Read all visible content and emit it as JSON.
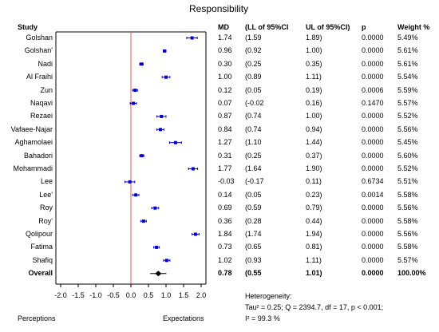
{
  "chart_data": {
    "type": "forest",
    "title": "Responsibility",
    "columns": [
      "Study",
      "MD",
      "(LL of 95%CI",
      "UL of 95%CI)",
      "p",
      "Weight %"
    ],
    "rows": [
      {
        "study": "Golshan",
        "md": "1.74",
        "ll": "(1.59",
        "ul": "1.89)",
        "p": "0.0000",
        "weight": "5.49%",
        "md_v": 1.74,
        "ll_v": 1.59,
        "ul_v": 1.89
      },
      {
        "study": "Golshan'",
        "md": "0.96",
        "ll": "(0.92",
        "ul": "1.00)",
        "p": "0.0000",
        "weight": "5.61%",
        "md_v": 0.96,
        "ll_v": 0.92,
        "ul_v": 1.0
      },
      {
        "study": "Nadi",
        "md": "0.30",
        "ll": "(0.25",
        "ul": "0.35)",
        "p": "0.0000",
        "weight": "5.61%",
        "md_v": 0.3,
        "ll_v": 0.25,
        "ul_v": 0.35
      },
      {
        "study": "Al Fraihi",
        "md": "1.00",
        "ll": "(0.89",
        "ul": "1.11)",
        "p": "0.0000",
        "weight": "5.54%",
        "md_v": 1.0,
        "ll_v": 0.89,
        "ul_v": 1.11
      },
      {
        "study": "Zun",
        "md": "0.12",
        "ll": "(0.05",
        "ul": "0.19)",
        "p": "0.0006",
        "weight": "5.59%",
        "md_v": 0.12,
        "ll_v": 0.05,
        "ul_v": 0.19
      },
      {
        "study": "Naqavi",
        "md": "0.07",
        "ll": "(-0.02",
        "ul": "0.16)",
        "p": "0.1470",
        "weight": "5.57%",
        "md_v": 0.07,
        "ll_v": -0.02,
        "ul_v": 0.16
      },
      {
        "study": "Rezaei",
        "md": "0.87",
        "ll": "(0.74",
        "ul": "1.00)",
        "p": "0.0000",
        "weight": "5.52%",
        "md_v": 0.87,
        "ll_v": 0.74,
        "ul_v": 1.0
      },
      {
        "study": "Vafaee-Najar",
        "md": "0.84",
        "ll": "(0.74",
        "ul": "0.94)",
        "p": "0.0000",
        "weight": "5.56%",
        "md_v": 0.84,
        "ll_v": 0.74,
        "ul_v": 0.94
      },
      {
        "study": "Aghamolaei",
        "md": "1.27",
        "ll": "(1.10",
        "ul": "1.44)",
        "p": "0.0000",
        "weight": "5.45%",
        "md_v": 1.27,
        "ll_v": 1.1,
        "ul_v": 1.44
      },
      {
        "study": "Bahadori",
        "md": "0.31",
        "ll": "(0.25",
        "ul": "0.37)",
        "p": "0.0000",
        "weight": "5.60%",
        "md_v": 0.31,
        "ll_v": 0.25,
        "ul_v": 0.37
      },
      {
        "study": "Mohammadi",
        "md": "1.77",
        "ll": "(1.64",
        "ul": "1.90)",
        "p": "0.0000",
        "weight": "5.52%",
        "md_v": 1.77,
        "ll_v": 1.64,
        "ul_v": 1.9
      },
      {
        "study": "Lee",
        "md": "-0.03",
        "ll": "(-0.17",
        "ul": "0.11)",
        "p": "0.6734",
        "weight": "5.51%",
        "md_v": -0.03,
        "ll_v": -0.17,
        "ul_v": 0.11
      },
      {
        "study": "Lee'",
        "md": "0.14",
        "ll": "(0.05",
        "ul": "0.23)",
        "p": "0.0014",
        "weight": "5.58%",
        "md_v": 0.14,
        "ll_v": 0.05,
        "ul_v": 0.23
      },
      {
        "study": "Roy",
        "md": "0.69",
        "ll": "(0.59",
        "ul": "0.79)",
        "p": "0.0000",
        "weight": "5.56%",
        "md_v": 0.69,
        "ll_v": 0.59,
        "ul_v": 0.79
      },
      {
        "study": "Roy'",
        "md": "0.36",
        "ll": "(0.28",
        "ul": "0.44)",
        "p": "0.0000",
        "weight": "5.58%",
        "md_v": 0.36,
        "ll_v": 0.28,
        "ul_v": 0.44
      },
      {
        "study": "Qolipour",
        "md": "1.84",
        "ll": "(1.74",
        "ul": "1.94)",
        "p": "0.0000",
        "weight": "5.56%",
        "md_v": 1.84,
        "ll_v": 1.74,
        "ul_v": 1.94
      },
      {
        "study": "Fatima",
        "md": "0.73",
        "ll": "(0.65",
        "ul": "0.81)",
        "p": "0.0000",
        "weight": "5.58%",
        "md_v": 0.73,
        "ll_v": 0.65,
        "ul_v": 0.81
      },
      {
        "study": "Shafiq",
        "md": "1.02",
        "ll": "(0.93",
        "ul": "1.11)",
        "p": "0.0000",
        "weight": "5.57%",
        "md_v": 1.02,
        "ll_v": 0.93,
        "ul_v": 1.11
      }
    ],
    "overall": {
      "study": "Overall",
      "md": "0.78",
      "ll": "(0.55",
      "ul": "1.01)",
      "p": "0.0000",
      "weight": "100.00%",
      "md_v": 0.78,
      "ll_v": 0.55,
      "ul_v": 1.01
    },
    "x_ticks": [
      "-2.0",
      "-1.5",
      "-1.0",
      "-0.5",
      "0.0",
      "0.5",
      "1.0",
      "1.5",
      "2.0"
    ],
    "x_range": [
      -2.0,
      2.0
    ],
    "xlabel_left": "Perceptions",
    "xlabel_right": "Expectations",
    "heterogeneity_title": "Heterogeneity:",
    "heterogeneity_line1": "Tau² = 0.25; Q = 2394.7, df = 17, p < 0.001;",
    "heterogeneity_line2": "I² = 99.3 %",
    "colors": {
      "study_marker": "#0000cc",
      "overall_marker": "#000000",
      "zero_line": "#e06060",
      "axis": "#000000"
    }
  }
}
